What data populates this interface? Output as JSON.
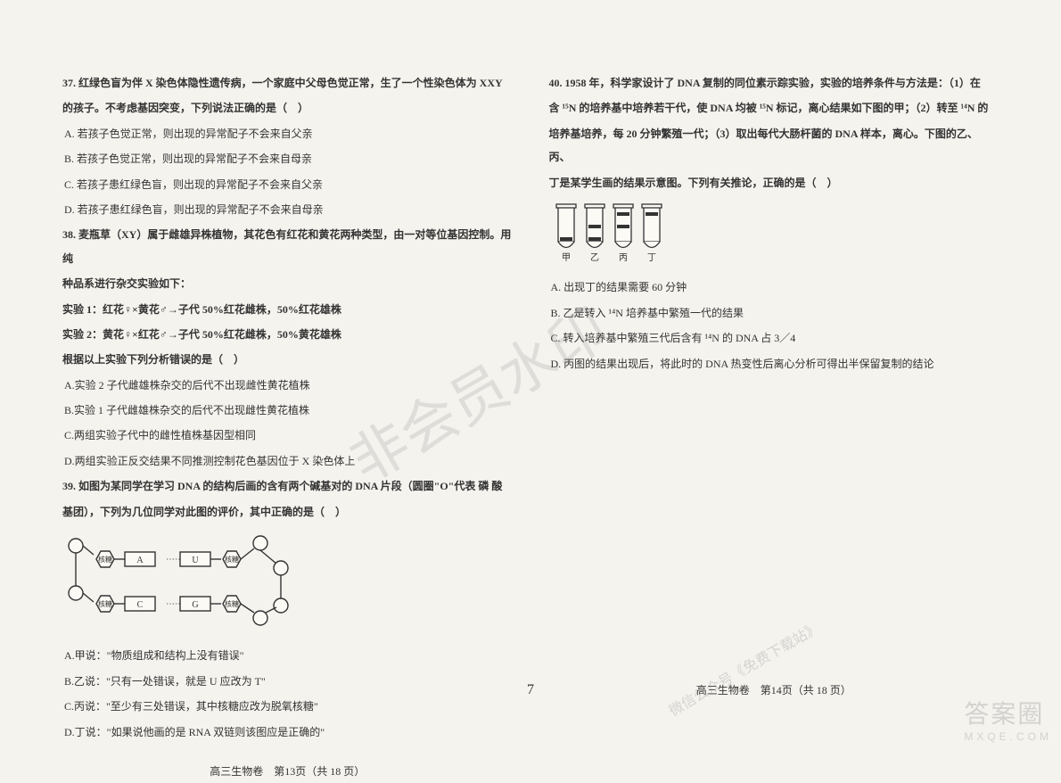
{
  "left": {
    "q37": {
      "stem1": "37. 红绿色盲为伴 X 染色体隐性遗传病，一个家庭中父母色觉正常，生了一个性染色体为 XXY",
      "stem2": "的孩子。不考虑基因突变，下列说法正确的是（　）",
      "A": "A. 若孩子色觉正常，则出现的异常配子不会来自父亲",
      "B": "B. 若孩子色觉正常，则出现的异常配子不会来自母亲",
      "C": "C. 若孩子患红绿色盲，则出现的异常配子不会来自父亲",
      "D": "D. 若孩子患红绿色盲，则出现的异常配子不会来自母亲"
    },
    "q38": {
      "stem1": "38. 麦瓶草（XY）属于雌雄异株植物，其花色有红花和黄花两种类型，由一对等位基因控制。用纯",
      "stem2": "种品系进行杂交实验如下：",
      "exp1": "实验 1：红花♀×黄花♂→子代 50%红花雌株，50%红花雄株",
      "exp2": "实验 2：黄花♀×红花♂→子代 50%红花雌株，50%黄花雄株",
      "stem3": "根据以上实验下列分析错误的是（　）",
      "A": "A.实验 2 子代雌雄株杂交的后代不出现雌性黄花植株",
      "B": "B.实验 1 子代雌雄株杂交的后代不出现雌性黄花植株",
      "C": "C.两组实验子代中的雌性植株基因型相同",
      "D": "D.两组实验正反交结果不同推测控制花色基因位于 X 染色体上"
    },
    "q39": {
      "stem1": "39. 如图为某同学在学习 DNA 的结构后画的含有两个碱基对的 DNA 片段（圆圈\"O\"代表 磷 酸",
      "stem2": "基团），下列为几位同学对此图的评价，其中正确的是（　）",
      "A": "A.甲说：\"物质组成和结构上没有错误\"",
      "B": "B.乙说：\"只有一处错误，就是 U 应改为 T\"",
      "C": "C.丙说：\"至少有三处错误，其中核糖应改为脱氧核糖\"",
      "D": "D.丁说：\"如果说他画的是 RNA 双链则该图应是正确的\""
    },
    "footer": "高三生物卷　第13页（共 18 页）",
    "dna": {
      "labels": {
        "hex": "核糖",
        "A": "A",
        "U": "U",
        "C": "C",
        "G": "G"
      },
      "colors": {
        "stroke": "#333",
        "fill": "#fcfaf5"
      }
    }
  },
  "right": {
    "q40": {
      "stem1": "40. 1958 年，科学家设计了 DNA 复制的同位素示踪实验，实验的培养条件与方法是：（1）在",
      "stem2": "含 ¹⁵N 的培养基中培养若干代，使 DNA 均被 ¹⁵N 标记，离心结果如下图的甲；（2）转至 ¹⁴N 的",
      "stem3": "培养基培养，每 20 分钟繁殖一代；（3）取出每代大肠杆菌的 DNA 样本，离心。下图的乙、丙、",
      "stem4": "丁是某学生画的结果示意图。下列有关推论，正确的是（　）",
      "A": "A. 出现丁的结果需要 60 分钟",
      "B": "B. 乙是转入 ¹⁴N 培养基中繁殖一代的结果",
      "C": "C. 转入培养基中繁殖三代后含有 ¹⁴N 的 DNA 占 3／4",
      "D": "D. 丙图的结果出现后，将此时的 DNA 热变性后离心分析可得出半保留复制的结论"
    },
    "footer": "高三生物卷　第14页（共 18 页）",
    "tubes": {
      "labels": [
        "甲",
        "乙",
        "丙",
        "丁"
      ],
      "bands": {
        "colors": {
          "stroke": "#333",
          "fill": "#fcfaf5",
          "band": "#333"
        },
        "data": [
          {
            "low": true,
            "mid": false,
            "high": false
          },
          {
            "low": true,
            "mid": true,
            "high": false
          },
          {
            "low": false,
            "mid": true,
            "high": true
          },
          {
            "low": false,
            "mid": false,
            "high": true
          }
        ]
      }
    }
  },
  "center_page": "7",
  "watermarks": {
    "center": "非会员水印",
    "small": "微信公众号《免费下载站》",
    "corner_top": "答案圈",
    "corner_sub": "MXQE.COM"
  }
}
